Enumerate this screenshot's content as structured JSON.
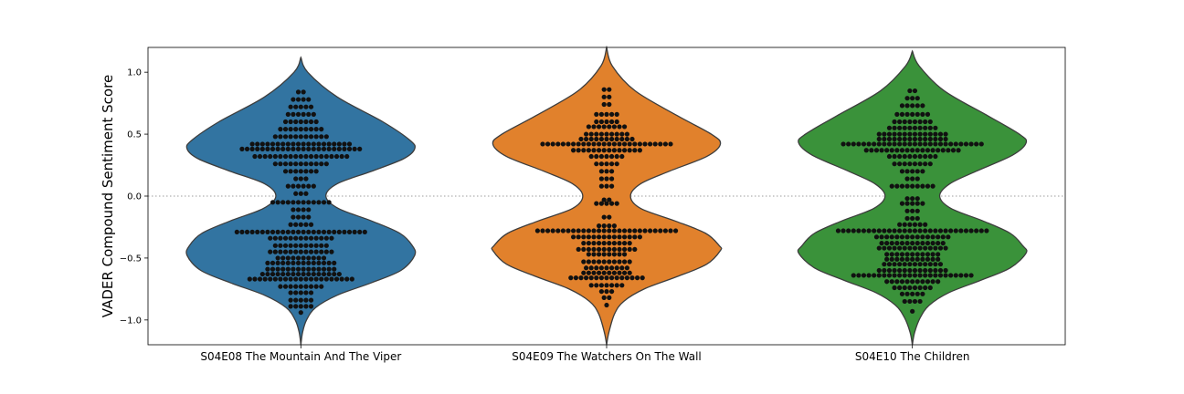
{
  "chart_data": {
    "type": "violin+swarm",
    "ylabel": "VADER Compound Sentiment Score",
    "xlabel": "",
    "ylim": [
      -1.2,
      1.2
    ],
    "yticks": [
      1.0,
      0.5,
      0.0,
      -0.5,
      -1.0
    ],
    "ytick_labels": [
      "1.0",
      "0.5",
      "0.0",
      "−0.5",
      "−1.0"
    ],
    "reference_line": {
      "y": 0.0,
      "style": "dotted",
      "color": "#b0b0b0"
    },
    "categories": [
      "S04E08 The Mountain And The Viper",
      "S04E09 The Watchers On The Wall",
      "S04E10 The Children"
    ],
    "colors": [
      "#3274a1",
      "#e1812c",
      "#3a923a"
    ],
    "point_color": "#111111",
    "series": [
      {
        "category": "S04E08 The Mountain And The Viper",
        "violin_extent": [
          -1.2,
          1.12
        ],
        "density": [
          [
            1.12,
            0.0
          ],
          [
            1.0,
            0.06
          ],
          [
            0.8,
            0.32
          ],
          [
            0.6,
            0.72
          ],
          [
            0.45,
            0.96
          ],
          [
            0.38,
            1.0
          ],
          [
            0.3,
            0.9
          ],
          [
            0.2,
            0.62
          ],
          [
            0.1,
            0.32
          ],
          [
            0.0,
            0.22
          ],
          [
            -0.1,
            0.33
          ],
          [
            -0.2,
            0.62
          ],
          [
            -0.3,
            0.87
          ],
          [
            -0.4,
            0.98
          ],
          [
            -0.48,
            1.0
          ],
          [
            -0.6,
            0.88
          ],
          [
            -0.7,
            0.62
          ],
          [
            -0.8,
            0.32
          ],
          [
            -0.9,
            0.13
          ],
          [
            -1.0,
            0.05
          ],
          [
            -1.1,
            0.015
          ],
          [
            -1.2,
            0.0
          ]
        ],
        "swarm": [
          {
            "y": 0.84,
            "n": 2
          },
          {
            "y": 0.78,
            "n": 4
          },
          {
            "y": 0.72,
            "n": 5
          },
          {
            "y": 0.66,
            "n": 6
          },
          {
            "y": 0.6,
            "n": 7
          },
          {
            "y": 0.54,
            "n": 9
          },
          {
            "y": 0.48,
            "n": 11
          },
          {
            "y": 0.42,
            "n": 20
          },
          {
            "y": 0.38,
            "n": 24
          },
          {
            "y": 0.32,
            "n": 19
          },
          {
            "y": 0.26,
            "n": 11
          },
          {
            "y": 0.2,
            "n": 7
          },
          {
            "y": 0.14,
            "n": 3
          },
          {
            "y": 0.08,
            "n": 6
          },
          {
            "y": 0.02,
            "n": 3
          },
          {
            "y": -0.05,
            "n": 12
          },
          {
            "y": -0.11,
            "n": 4
          },
          {
            "y": -0.17,
            "n": 4
          },
          {
            "y": -0.23,
            "n": 5
          },
          {
            "y": -0.29,
            "n": 26
          },
          {
            "y": -0.34,
            "n": 13
          },
          {
            "y": -0.4,
            "n": 11
          },
          {
            "y": -0.45,
            "n": 13
          },
          {
            "y": -0.5,
            "n": 10
          },
          {
            "y": -0.54,
            "n": 14
          },
          {
            "y": -0.59,
            "n": 14
          },
          {
            "y": -0.63,
            "n": 16
          },
          {
            "y": -0.67,
            "n": 21
          },
          {
            "y": -0.73,
            "n": 9
          },
          {
            "y": -0.78,
            "n": 5
          },
          {
            "y": -0.84,
            "n": 5
          },
          {
            "y": -0.89,
            "n": 5
          },
          {
            "y": -0.94,
            "n": 1
          }
        ]
      },
      {
        "category": "S04E09 The Watchers On The Wall",
        "violin_extent": [
          -1.2,
          1.2
        ],
        "density": [
          [
            1.2,
            0.0
          ],
          [
            1.05,
            0.05
          ],
          [
            0.85,
            0.25
          ],
          [
            0.65,
            0.62
          ],
          [
            0.5,
            0.92
          ],
          [
            0.42,
            1.0
          ],
          [
            0.32,
            0.88
          ],
          [
            0.2,
            0.55
          ],
          [
            0.1,
            0.3
          ],
          [
            0.0,
            0.21
          ],
          [
            -0.1,
            0.3
          ],
          [
            -0.2,
            0.6
          ],
          [
            -0.3,
            0.87
          ],
          [
            -0.4,
            0.99
          ],
          [
            -0.44,
            1.0
          ],
          [
            -0.55,
            0.88
          ],
          [
            -0.65,
            0.62
          ],
          [
            -0.75,
            0.33
          ],
          [
            -0.85,
            0.15
          ],
          [
            -0.95,
            0.07
          ],
          [
            -1.1,
            0.02
          ],
          [
            -1.2,
            0.0
          ]
        ],
        "swarm": [
          {
            "y": 0.86,
            "n": 2
          },
          {
            "y": 0.8,
            "n": 2
          },
          {
            "y": 0.74,
            "n": 2
          },
          {
            "y": 0.66,
            "n": 5
          },
          {
            "y": 0.6,
            "n": 5
          },
          {
            "y": 0.56,
            "n": 8
          },
          {
            "y": 0.5,
            "n": 9
          },
          {
            "y": 0.46,
            "n": 11
          },
          {
            "y": 0.42,
            "n": 26
          },
          {
            "y": 0.37,
            "n": 14
          },
          {
            "y": 0.32,
            "n": 7
          },
          {
            "y": 0.26,
            "n": 5
          },
          {
            "y": 0.2,
            "n": 3
          },
          {
            "y": 0.14,
            "n": 3
          },
          {
            "y": 0.08,
            "n": 3
          },
          {
            "y": -0.03,
            "n": 2
          },
          {
            "y": -0.06,
            "n": 5
          },
          {
            "y": -0.17,
            "n": 2
          },
          {
            "y": -0.24,
            "n": 4
          },
          {
            "y": -0.28,
            "n": 28
          },
          {
            "y": -0.33,
            "n": 14
          },
          {
            "y": -0.38,
            "n": 10
          },
          {
            "y": -0.43,
            "n": 12
          },
          {
            "y": -0.47,
            "n": 8
          },
          {
            "y": -0.53,
            "n": 10
          },
          {
            "y": -0.58,
            "n": 9
          },
          {
            "y": -0.62,
            "n": 10
          },
          {
            "y": -0.66,
            "n": 15
          },
          {
            "y": -0.72,
            "n": 7
          },
          {
            "y": -0.77,
            "n": 3
          },
          {
            "y": -0.82,
            "n": 2
          },
          {
            "y": -0.88,
            "n": 1
          }
        ]
      },
      {
        "category": "S04E10 The Children",
        "violin_extent": [
          -1.2,
          1.17
        ],
        "density": [
          [
            1.17,
            0.0
          ],
          [
            1.05,
            0.06
          ],
          [
            0.85,
            0.28
          ],
          [
            0.65,
            0.66
          ],
          [
            0.5,
            0.94
          ],
          [
            0.43,
            1.0
          ],
          [
            0.33,
            0.88
          ],
          [
            0.2,
            0.56
          ],
          [
            0.1,
            0.33
          ],
          [
            0.0,
            0.24
          ],
          [
            -0.1,
            0.34
          ],
          [
            -0.2,
            0.62
          ],
          [
            -0.3,
            0.86
          ],
          [
            -0.4,
            0.97
          ],
          [
            -0.46,
            1.0
          ],
          [
            -0.58,
            0.86
          ],
          [
            -0.68,
            0.6
          ],
          [
            -0.78,
            0.32
          ],
          [
            -0.88,
            0.15
          ],
          [
            -0.98,
            0.07
          ],
          [
            -1.1,
            0.02
          ],
          [
            -1.2,
            0.0
          ]
        ],
        "swarm": [
          {
            "y": 0.85,
            "n": 2
          },
          {
            "y": 0.79,
            "n": 3
          },
          {
            "y": 0.73,
            "n": 5
          },
          {
            "y": 0.66,
            "n": 7
          },
          {
            "y": 0.6,
            "n": 8
          },
          {
            "y": 0.55,
            "n": 10
          },
          {
            "y": 0.5,
            "n": 14
          },
          {
            "y": 0.46,
            "n": 14
          },
          {
            "y": 0.42,
            "n": 28
          },
          {
            "y": 0.37,
            "n": 19
          },
          {
            "y": 0.32,
            "n": 10
          },
          {
            "y": 0.26,
            "n": 8
          },
          {
            "y": 0.2,
            "n": 5
          },
          {
            "y": 0.14,
            "n": 3
          },
          {
            "y": 0.08,
            "n": 9
          },
          {
            "y": -0.02,
            "n": 3
          },
          {
            "y": -0.06,
            "n": 5
          },
          {
            "y": -0.12,
            "n": 3
          },
          {
            "y": -0.18,
            "n": 3
          },
          {
            "y": -0.23,
            "n": 6
          },
          {
            "y": -0.28,
            "n": 30
          },
          {
            "y": -0.33,
            "n": 15
          },
          {
            "y": -0.38,
            "n": 13
          },
          {
            "y": -0.42,
            "n": 14
          },
          {
            "y": -0.47,
            "n": 11
          },
          {
            "y": -0.51,
            "n": 11
          },
          {
            "y": -0.55,
            "n": 12
          },
          {
            "y": -0.6,
            "n": 14
          },
          {
            "y": -0.64,
            "n": 24
          },
          {
            "y": -0.69,
            "n": 11
          },
          {
            "y": -0.74,
            "n": 8
          },
          {
            "y": -0.79,
            "n": 5
          },
          {
            "y": -0.85,
            "n": 4
          },
          {
            "y": -0.93,
            "n": 1
          }
        ]
      }
    ]
  }
}
